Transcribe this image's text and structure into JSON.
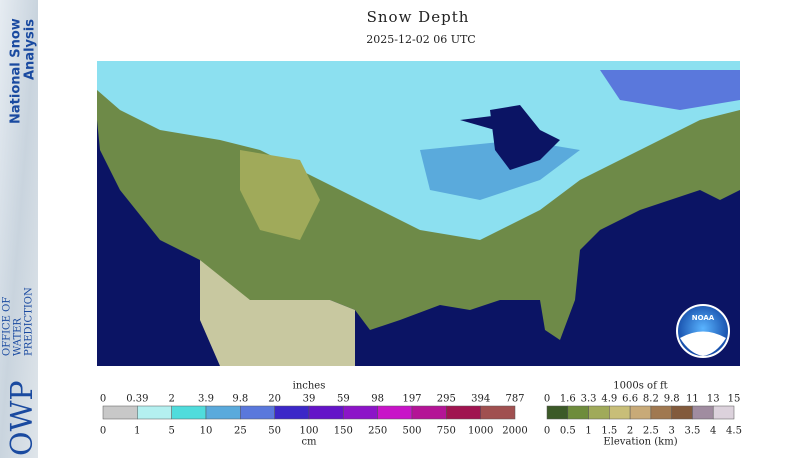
{
  "header": {
    "title": "Snow Depth",
    "date": "2025-12-02 06 UTC"
  },
  "sidebar": {
    "product": [
      "National Snow",
      "Analysis"
    ],
    "logo": "OWP",
    "office": [
      "OFFICE OF",
      "WATER",
      "PREDICTION"
    ]
  },
  "map": {
    "logo": "NOAA"
  },
  "legends": [
    {
      "title": "inches",
      "top_labels": [
        "0",
        "0.39",
        "2",
        "3.9",
        "9.8",
        "20",
        "39",
        "59",
        "98",
        "197",
        "295",
        "394",
        "787"
      ],
      "bottom_labels": [
        "0",
        "1",
        "5",
        "10",
        "25",
        "50",
        "100",
        "150",
        "250",
        "500",
        "750",
        "1000",
        "2000"
      ],
      "bottom_title": "cm",
      "colors": [
        "#c8c8c8",
        "#b4f0f0",
        "#50dcdc",
        "#5aaadc",
        "#5a78dc",
        "#3c28c8",
        "#6414c8",
        "#8c14c8",
        "#c814c8",
        "#b41496",
        "#a01450",
        "#a05050"
      ]
    },
    {
      "title": "1000s of ft",
      "top_labels": [
        "0",
        "1.6",
        "3.3",
        "4.9",
        "6.6",
        "8.2",
        "9.8",
        "11",
        "13",
        "15"
      ],
      "bottom_labels": [
        "0",
        "0.5",
        "1",
        "1.5",
        "2",
        "2.5",
        "3",
        "3.5",
        "4",
        "4.5"
      ],
      "bottom_title": "Elevation (km)",
      "colors": [
        "#3c5a28",
        "#6e8c3c",
        "#a0aa5a",
        "#c8be78",
        "#c8aa78",
        "#a07850",
        "#825a3c",
        "#a08ca0",
        "#dcd2dc"
      ]
    }
  ]
}
